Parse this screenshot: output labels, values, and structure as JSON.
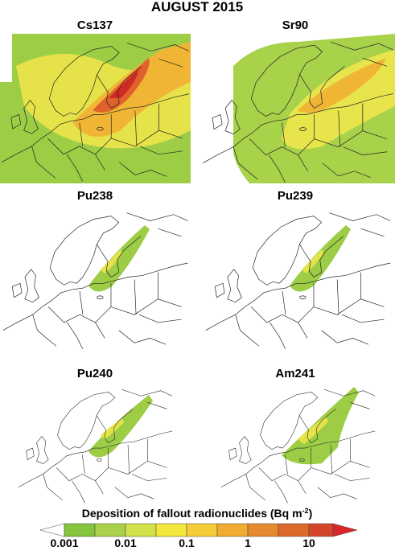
{
  "title": "AUGUST 2015",
  "panels": [
    {
      "label": "Cs137"
    },
    {
      "label": "Sr90"
    },
    {
      "label": "Pu238"
    },
    {
      "label": "Pu239"
    },
    {
      "label": "Pu240"
    },
    {
      "label": "Am241"
    }
  ],
  "colorbar": {
    "title": "Deposition of fallout radionuclides (Bq m",
    "unit_exponent": "-2",
    "title_end": ")",
    "tick_labels": [
      "0.001",
      "0.01",
      "0.1",
      "1",
      "10"
    ]
  }
}
